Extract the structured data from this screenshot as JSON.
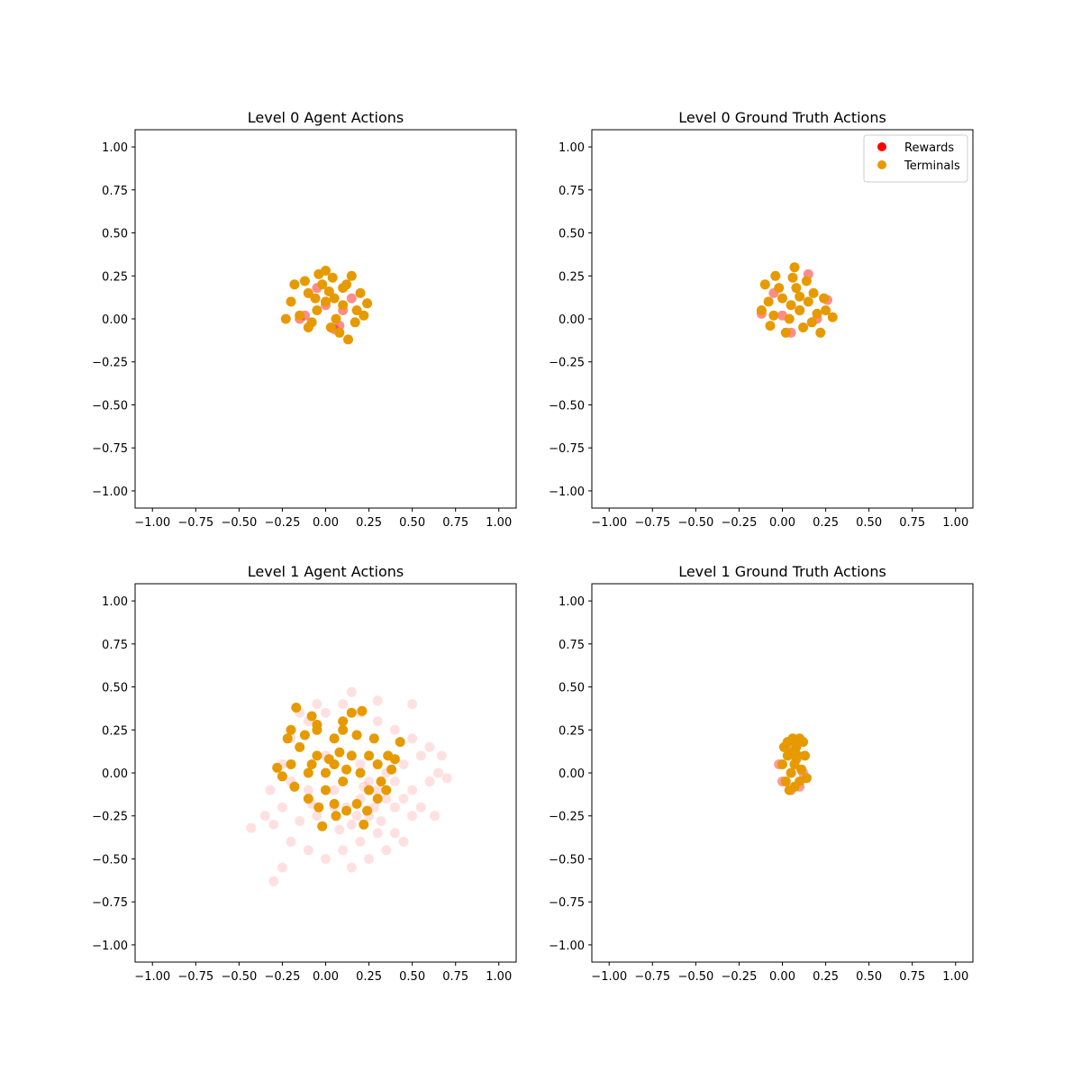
{
  "chart_data": [
    {
      "type": "scatter",
      "title": "Level 0 Agent Actions",
      "xlabel": "",
      "ylabel": "",
      "xlim": [
        -1.1,
        1.1
      ],
      "ylim": [
        -1.1,
        1.1
      ],
      "xticks": [
        -1.0,
        -0.75,
        -0.5,
        -0.25,
        0.0,
        0.25,
        0.5,
        0.75,
        1.0
      ],
      "yticks": [
        -1.0,
        -0.75,
        -0.5,
        -0.25,
        0.0,
        0.25,
        0.5,
        0.75,
        1.0
      ],
      "xtick_labels": [
        "−1.00",
        "−0.75",
        "−0.50",
        "−0.25",
        "0.00",
        "0.25",
        "0.50",
        "0.75",
        "1.00"
      ],
      "ytick_labels": [
        "−1.00",
        "−0.75",
        "−0.50",
        "−0.25",
        "0.00",
        "0.25",
        "0.50",
        "0.75",
        "1.00"
      ],
      "grid": false,
      "legend": null,
      "series": [
        {
          "name": "Rewards",
          "color": "#ff0000",
          "opacity": 0.45,
          "points": [
            [
              0.0,
              0.08
            ],
            [
              -0.12,
              0.02
            ],
            [
              0.1,
              0.05
            ],
            [
              0.05,
              -0.06
            ],
            [
              -0.05,
              0.18
            ],
            [
              0.15,
              0.12
            ],
            [
              0.08,
              -0.04
            ],
            [
              -0.15,
              0.0
            ]
          ]
        },
        {
          "name": "Terminals",
          "color": "#e69a00",
          "opacity": 1.0,
          "points": [
            [
              0.0,
              0.1
            ],
            [
              -0.05,
              0.05
            ],
            [
              0.05,
              0.12
            ],
            [
              0.1,
              0.08
            ],
            [
              -0.1,
              0.15
            ],
            [
              0.12,
              0.2
            ],
            [
              -0.15,
              0.02
            ],
            [
              0.18,
              0.05
            ],
            [
              0.03,
              -0.05
            ],
            [
              0.08,
              -0.08
            ],
            [
              -0.08,
              -0.02
            ],
            [
              0.2,
              0.15
            ],
            [
              -0.12,
              0.22
            ],
            [
              0.0,
              0.28
            ],
            [
              -0.2,
              0.1
            ],
            [
              0.22,
              0.02
            ],
            [
              0.13,
              -0.12
            ],
            [
              -0.02,
              0.2
            ],
            [
              0.06,
              0.0
            ],
            [
              -0.06,
              0.12
            ],
            [
              0.15,
              0.25
            ],
            [
              -0.18,
              0.2
            ],
            [
              0.24,
              0.09
            ],
            [
              -0.23,
              0.0
            ],
            [
              0.02,
              0.16
            ],
            [
              0.1,
              0.18
            ],
            [
              -0.1,
              -0.05
            ],
            [
              0.04,
              0.24
            ],
            [
              -0.04,
              0.26
            ],
            [
              0.17,
              -0.02
            ]
          ]
        }
      ]
    },
    {
      "type": "scatter",
      "title": "Level 0 Ground Truth Actions",
      "xlabel": "",
      "ylabel": "",
      "xlim": [
        -1.1,
        1.1
      ],
      "ylim": [
        -1.1,
        1.1
      ],
      "xticks": [
        -1.0,
        -0.75,
        -0.5,
        -0.25,
        0.0,
        0.25,
        0.5,
        0.75,
        1.0
      ],
      "yticks": [
        -1.0,
        -0.75,
        -0.5,
        -0.25,
        0.0,
        0.25,
        0.5,
        0.75,
        1.0
      ],
      "xtick_labels": [
        "−1.00",
        "−0.75",
        "−0.50",
        "−0.25",
        "0.00",
        "0.25",
        "0.50",
        "0.75",
        "1.00"
      ],
      "ytick_labels": [
        "−1.00",
        "−0.75",
        "−0.50",
        "−0.25",
        "0.00",
        "0.25",
        "0.50",
        "0.75",
        "1.00"
      ],
      "grid": false,
      "legend": "top-right",
      "series": [
        {
          "name": "Rewards",
          "color": "#ff0000",
          "opacity": 0.45,
          "points": [
            [
              -0.12,
              0.03
            ],
            [
              0.26,
              0.11
            ],
            [
              0.15,
              0.26
            ],
            [
              0.05,
              -0.08
            ],
            [
              0.2,
              0.0
            ],
            [
              -0.05,
              0.15
            ],
            [
              0.1,
              0.05
            ],
            [
              0.0,
              0.02
            ]
          ]
        },
        {
          "name": "Terminals",
          "color": "#e69a00",
          "opacity": 1.0,
          "points": [
            [
              0.05,
              0.08
            ],
            [
              0.1,
              0.05
            ],
            [
              0.0,
              0.12
            ],
            [
              -0.05,
              0.02
            ],
            [
              0.15,
              0.1
            ],
            [
              0.08,
              0.18
            ],
            [
              -0.08,
              0.1
            ],
            [
              0.2,
              0.03
            ],
            [
              0.12,
              -0.05
            ],
            [
              0.02,
              -0.08
            ],
            [
              -0.1,
              0.2
            ],
            [
              0.07,
              0.3
            ],
            [
              0.25,
              0.05
            ],
            [
              -0.04,
              0.25
            ],
            [
              0.18,
              0.15
            ],
            [
              0.29,
              0.01
            ],
            [
              0.14,
              0.22
            ],
            [
              -0.12,
              0.05
            ],
            [
              0.04,
              0.0
            ],
            [
              0.1,
              0.13
            ],
            [
              0.22,
              -0.08
            ],
            [
              -0.02,
              0.18
            ],
            [
              0.17,
              -0.02
            ],
            [
              0.06,
              0.24
            ],
            [
              -0.07,
              -0.04
            ],
            [
              0.24,
              0.12
            ]
          ]
        }
      ]
    },
    {
      "type": "scatter",
      "title": "Level 1 Agent Actions",
      "xlabel": "",
      "ylabel": "",
      "xlim": [
        -1.1,
        1.1
      ],
      "ylim": [
        -1.1,
        1.1
      ],
      "xticks": [
        -1.0,
        -0.75,
        -0.5,
        -0.25,
        0.0,
        0.25,
        0.5,
        0.75,
        1.0
      ],
      "yticks": [
        -1.0,
        -0.75,
        -0.5,
        -0.25,
        0.0,
        0.25,
        0.5,
        0.75,
        1.0
      ],
      "xtick_labels": [
        "−1.00",
        "−0.75",
        "−0.50",
        "−0.25",
        "0.00",
        "0.25",
        "0.50",
        "0.75",
        "1.00"
      ],
      "ytick_labels": [
        "−1.00",
        "−0.75",
        "−0.50",
        "−0.25",
        "0.00",
        "0.25",
        "0.50",
        "0.75",
        "1.00"
      ],
      "grid": false,
      "legend": null,
      "series": [
        {
          "name": "Rewards",
          "color": "#ff0000",
          "opacity": 0.12,
          "points": [
            [
              0.1,
              -0.05
            ],
            [
              0.2,
              -0.15
            ],
            [
              0.3,
              -0.1
            ],
            [
              0.25,
              -0.25
            ],
            [
              0.15,
              -0.3
            ],
            [
              0.35,
              0.0
            ],
            [
              0.4,
              -0.2
            ],
            [
              0.05,
              -0.2
            ],
            [
              -0.05,
              -0.25
            ],
            [
              0.45,
              0.05
            ],
            [
              0.5,
              -0.1
            ],
            [
              0.55,
              0.1
            ],
            [
              0.6,
              -0.05
            ],
            [
              0.65,
              0.0
            ],
            [
              0.0,
              0.1
            ],
            [
              -0.1,
              -0.1
            ],
            [
              -0.2,
              -0.05
            ],
            [
              -0.25,
              -0.2
            ],
            [
              -0.3,
              -0.3
            ],
            [
              -0.2,
              -0.4
            ],
            [
              -0.1,
              -0.45
            ],
            [
              0.0,
              -0.5
            ],
            [
              0.1,
              -0.45
            ],
            [
              0.2,
              -0.4
            ],
            [
              0.3,
              -0.35
            ],
            [
              0.4,
              -0.35
            ],
            [
              0.5,
              -0.25
            ],
            [
              0.55,
              -0.2
            ],
            [
              0.6,
              0.15
            ],
            [
              0.5,
              0.2
            ],
            [
              0.4,
              0.25
            ],
            [
              0.3,
              0.3
            ],
            [
              0.2,
              0.35
            ],
            [
              0.1,
              0.4
            ],
            [
              0.0,
              0.35
            ],
            [
              -0.1,
              0.3
            ],
            [
              -0.2,
              0.2
            ],
            [
              -0.25,
              0.05
            ],
            [
              -0.32,
              -0.1
            ],
            [
              -0.35,
              -0.25
            ],
            [
              -0.43,
              -0.32
            ],
            [
              -0.3,
              -0.63
            ],
            [
              -0.25,
              -0.55
            ],
            [
              0.15,
              -0.55
            ],
            [
              0.25,
              -0.5
            ],
            [
              0.35,
              -0.45
            ],
            [
              0.45,
              -0.4
            ],
            [
              0.63,
              -0.25
            ],
            [
              0.7,
              -0.03
            ],
            [
              0.67,
              0.1
            ],
            [
              0.5,
              0.4
            ],
            [
              0.15,
              0.47
            ],
            [
              0.3,
              0.42
            ],
            [
              -0.05,
              0.4
            ],
            [
              -0.15,
              0.35
            ],
            [
              0.25,
              -0.05
            ],
            [
              0.3,
              0.05
            ],
            [
              0.2,
              0.05
            ],
            [
              0.35,
              -0.15
            ],
            [
              0.28,
              -0.2
            ],
            [
              0.12,
              -0.2
            ],
            [
              0.18,
              -0.25
            ],
            [
              0.05,
              -0.1
            ],
            [
              0.4,
              -0.05
            ],
            [
              0.45,
              -0.15
            ],
            [
              0.22,
              -0.08
            ],
            [
              0.32,
              -0.28
            ],
            [
              0.08,
              -0.33
            ],
            [
              -0.08,
              -0.18
            ],
            [
              -0.15,
              -0.28
            ]
          ]
        },
        {
          "name": "Terminals",
          "color": "#e69a00",
          "opacity": 1.0,
          "points": [
            [
              0.0,
              0.0
            ],
            [
              0.05,
              0.05
            ],
            [
              -0.05,
              0.1
            ],
            [
              0.1,
              -0.05
            ],
            [
              0.15,
              0.1
            ],
            [
              -0.1,
              0.0
            ],
            [
              0.2,
              0.0
            ],
            [
              0.05,
              0.2
            ],
            [
              -0.15,
              0.15
            ],
            [
              0.0,
              -0.1
            ],
            [
              0.1,
              0.25
            ],
            [
              -0.05,
              0.25
            ],
            [
              0.25,
              0.1
            ],
            [
              0.25,
              -0.1
            ],
            [
              -0.2,
              0.05
            ],
            [
              0.3,
              0.05
            ],
            [
              -0.17,
              0.38
            ],
            [
              0.21,
              0.36
            ],
            [
              -0.08,
              0.33
            ],
            [
              0.15,
              0.35
            ],
            [
              0.43,
              0.18
            ],
            [
              0.36,
              0.1
            ],
            [
              -0.05,
              0.28
            ],
            [
              0.3,
              -0.15
            ],
            [
              -0.25,
              -0.02
            ],
            [
              -0.28,
              0.03
            ],
            [
              0.22,
              -0.3
            ],
            [
              -0.02,
              -0.31
            ],
            [
              0.12,
              -0.22
            ],
            [
              0.35,
              -0.1
            ],
            [
              0.05,
              -0.18
            ],
            [
              -0.1,
              -0.15
            ],
            [
              0.18,
              -0.18
            ],
            [
              0.28,
              0.2
            ],
            [
              -0.22,
              0.2
            ],
            [
              0.08,
              0.12
            ],
            [
              -0.08,
              0.05
            ],
            [
              0.12,
              0.02
            ],
            [
              0.02,
              0.08
            ],
            [
              0.18,
              0.22
            ],
            [
              -0.12,
              0.22
            ],
            [
              0.32,
              -0.05
            ],
            [
              0.38,
              0.02
            ],
            [
              -0.18,
              -0.08
            ],
            [
              0.24,
              -0.22
            ],
            [
              0.06,
              -0.25
            ],
            [
              -0.04,
              -0.2
            ],
            [
              0.4,
              0.08
            ],
            [
              0.1,
              0.3
            ],
            [
              -0.2,
              0.25
            ]
          ]
        }
      ]
    },
    {
      "type": "scatter",
      "title": "Level 1 Ground Truth Actions",
      "xlabel": "",
      "ylabel": "",
      "xlim": [
        -1.1,
        1.1
      ],
      "ylim": [
        -1.1,
        1.1
      ],
      "xticks": [
        -1.0,
        -0.75,
        -0.5,
        -0.25,
        0.0,
        0.25,
        0.5,
        0.75,
        1.0
      ],
      "yticks": [
        -1.0,
        -0.75,
        -0.5,
        -0.25,
        0.0,
        0.25,
        0.5,
        0.75,
        1.0
      ],
      "xtick_labels": [
        "−1.00",
        "−0.75",
        "−0.50",
        "−0.25",
        "0.00",
        "0.25",
        "0.50",
        "0.75",
        "1.00"
      ],
      "ytick_labels": [
        "−1.00",
        "−0.75",
        "−0.50",
        "−0.25",
        "0.00",
        "0.25",
        "0.50",
        "0.75",
        "1.00"
      ],
      "grid": false,
      "legend": null,
      "series": [
        {
          "name": "Rewards",
          "color": "#ff0000",
          "opacity": 0.4,
          "points": [
            [
              0.0,
              -0.05
            ],
            [
              0.05,
              -0.1
            ],
            [
              0.1,
              -0.08
            ],
            [
              -0.02,
              0.05
            ],
            [
              0.12,
              0.0
            ],
            [
              0.06,
              0.15
            ]
          ]
        },
        {
          "name": "Terminals",
          "color": "#e69a00",
          "opacity": 1.0,
          "points": [
            [
              0.05,
              0.0
            ],
            [
              0.07,
              0.05
            ],
            [
              0.03,
              0.1
            ],
            [
              0.08,
              0.15
            ],
            [
              0.1,
              -0.05
            ],
            [
              0.02,
              -0.05
            ],
            [
              0.06,
              0.2
            ],
            [
              0.09,
              0.1
            ],
            [
              0.04,
              -0.1
            ],
            [
              0.11,
              0.02
            ],
            [
              0.0,
              0.05
            ],
            [
              0.12,
              0.18
            ],
            [
              0.01,
              0.15
            ],
            [
              0.14,
              -0.03
            ],
            [
              0.07,
              -0.08
            ],
            [
              0.1,
              0.2
            ],
            [
              0.03,
              0.18
            ],
            [
              0.08,
              0.08
            ],
            [
              0.05,
              0.12
            ],
            [
              0.13,
              0.1
            ]
          ]
        }
      ]
    }
  ]
}
